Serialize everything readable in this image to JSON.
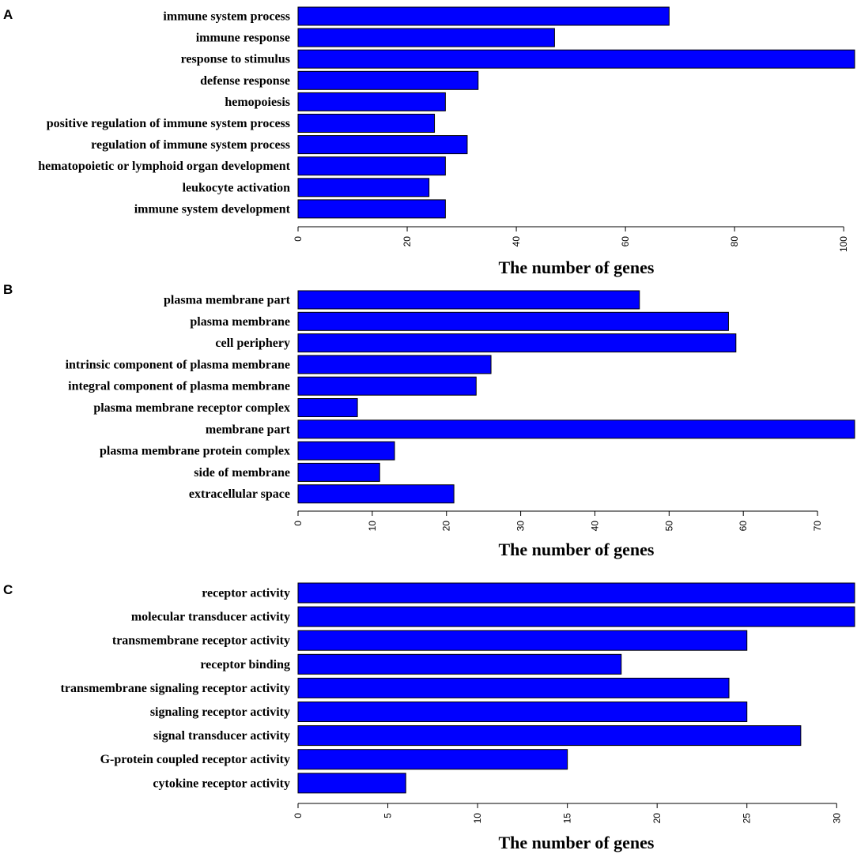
{
  "colors": {
    "bar_fill": "#0000ff",
    "bar_stroke": "#000000"
  },
  "chart_data": [
    {
      "type": "bar",
      "orientation": "horizontal",
      "panel": "A",
      "title": "",
      "categories": [
        "immune system process",
        "immune response",
        "response to stimulus",
        "defense response",
        "hemopoiesis",
        "positive regulation of immune system process",
        "regulation of immune system process",
        "hematopoietic or lymphoid organ development",
        "leukocyte activation",
        "immune system development"
      ],
      "values": [
        68,
        47,
        102,
        33,
        27,
        25,
        31,
        27,
        24,
        27
      ],
      "xlabel": "The number of genes",
      "ylabel": "",
      "xlim": [
        0,
        102
      ],
      "xticks": [
        0,
        20,
        40,
        60,
        80,
        100
      ],
      "grid": false
    },
    {
      "type": "bar",
      "orientation": "horizontal",
      "panel": "B",
      "title": "",
      "categories": [
        "plasma membrane part",
        "plasma membrane",
        "cell periphery",
        "intrinsic component of plasma membrane",
        "integral component of plasma membrane",
        "plasma membrane receptor complex",
        "membrane part",
        "plasma membrane protein complex",
        "side of membrane",
        "extracellular space"
      ],
      "values": [
        46,
        58,
        59,
        26,
        24,
        8,
        75,
        13,
        11,
        21
      ],
      "xlabel": "The number of genes",
      "ylabel": "",
      "xlim": [
        0,
        75
      ],
      "xticks": [
        0,
        10,
        20,
        30,
        40,
        50,
        60,
        70
      ],
      "grid": false
    },
    {
      "type": "bar",
      "orientation": "horizontal",
      "panel": "C",
      "title": "",
      "categories": [
        "receptor activity",
        "molecular transducer activity",
        "transmembrane receptor activity",
        "receptor binding",
        "transmembrane signaling receptor activity",
        "signaling receptor activity",
        "signal transducer activity",
        "G-protein coupled receptor activity",
        "cytokine receptor activity"
      ],
      "values": [
        31,
        31,
        25,
        18,
        24,
        25,
        28,
        15,
        6
      ],
      "xlabel": "The number of genes",
      "ylabel": "",
      "xlim": [
        0,
        31
      ],
      "xticks": [
        0,
        5,
        10,
        15,
        20,
        25,
        30
      ],
      "grid": false
    }
  ]
}
